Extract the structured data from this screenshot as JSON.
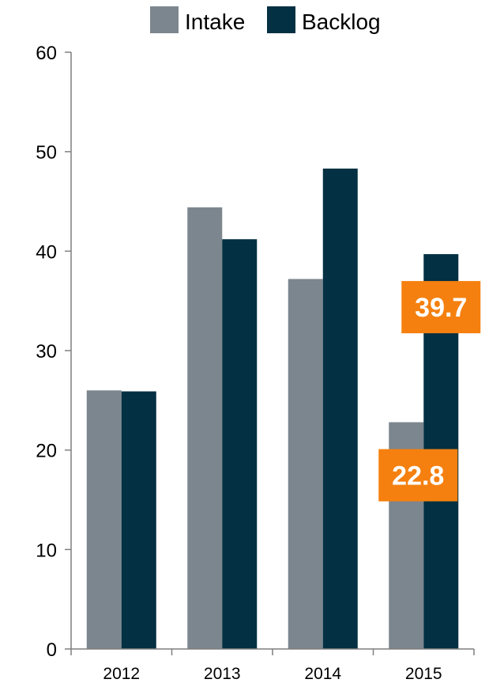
{
  "colors": {
    "intake": "#7c868e",
    "backlog": "#033042",
    "callout": "#f5800f",
    "axis": "#7f7f7f"
  },
  "legend": {
    "intake_label": "Intake",
    "backlog_label": "Backlog"
  },
  "chart_data": {
    "type": "bar",
    "categories": [
      "2012",
      "2013",
      "2014",
      "2015"
    ],
    "series": [
      {
        "name": "Intake",
        "values": [
          26,
          44.4,
          37.2,
          22.8
        ]
      },
      {
        "name": "Backlog",
        "values": [
          25.9,
          41.2,
          48.3,
          39.7
        ]
      }
    ],
    "ylim": [
      0,
      60
    ],
    "yticks": [
      "0",
      "10",
      "20",
      "30",
      "40",
      "50",
      "60"
    ],
    "grid": false,
    "legend_position": "top",
    "callouts": [
      {
        "series": "Intake",
        "category": "2015",
        "text": "22.8"
      },
      {
        "series": "Backlog",
        "category": "2015",
        "text": "39.7"
      }
    ]
  }
}
